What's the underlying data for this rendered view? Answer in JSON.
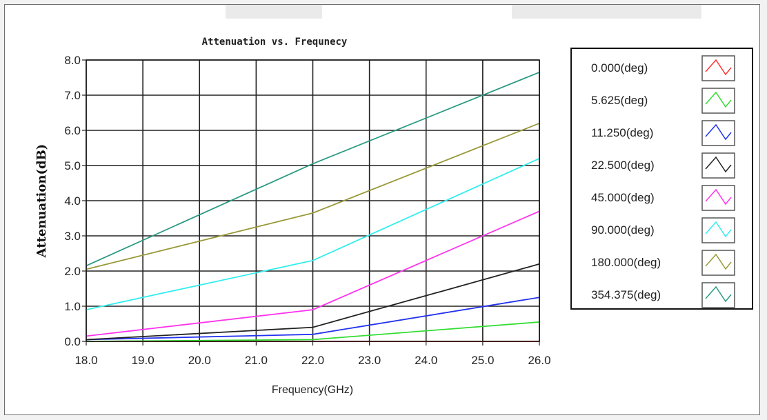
{
  "chart_data": {
    "type": "line",
    "title": "Attenuation vs. Frequnecy",
    "xlabel": "Frequency(GHz)",
    "ylabel": "Attenuation(dB)",
    "xlim": [
      18.0,
      26.0
    ],
    "ylim": [
      0.0,
      8.0
    ],
    "x_ticks": [
      "18.0",
      "19.0",
      "20.0",
      "21.0",
      "22.0",
      "23.0",
      "24.0",
      "25.0",
      "26.0"
    ],
    "y_ticks": [
      "0.0",
      "1.0",
      "2.0",
      "3.0",
      "4.0",
      "5.0",
      "6.0",
      "7.0",
      "8.0"
    ],
    "grid": true,
    "legend_position": "right",
    "x": [
      18,
      22,
      26
    ],
    "series": [
      {
        "name": "0.000(deg)",
        "color": "#ff3333",
        "values": [
          0.0,
          0.0,
          0.0
        ]
      },
      {
        "name": "5.625(deg)",
        "color": "#33dd33",
        "values": [
          0.0,
          0.05,
          0.55
        ]
      },
      {
        "name": "11.250(deg)",
        "color": "#2233ee",
        "values": [
          0.05,
          0.2,
          1.25
        ]
      },
      {
        "name": "22.500(deg)",
        "color": "#222222",
        "values": [
          0.05,
          0.4,
          2.2
        ]
      },
      {
        "name": "45.000(deg)",
        "color": "#ff33ee",
        "values": [
          0.15,
          0.9,
          3.7
        ]
      },
      {
        "name": "90.000(deg)",
        "color": "#33eeee",
        "values": [
          0.9,
          2.3,
          5.2
        ]
      },
      {
        "name": "180.000(deg)",
        "color": "#99993a",
        "values": [
          2.05,
          3.65,
          6.2
        ]
      },
      {
        "name": "354.375(deg)",
        "color": "#2a9a82",
        "values": [
          2.15,
          5.05,
          7.65
        ]
      }
    ]
  }
}
